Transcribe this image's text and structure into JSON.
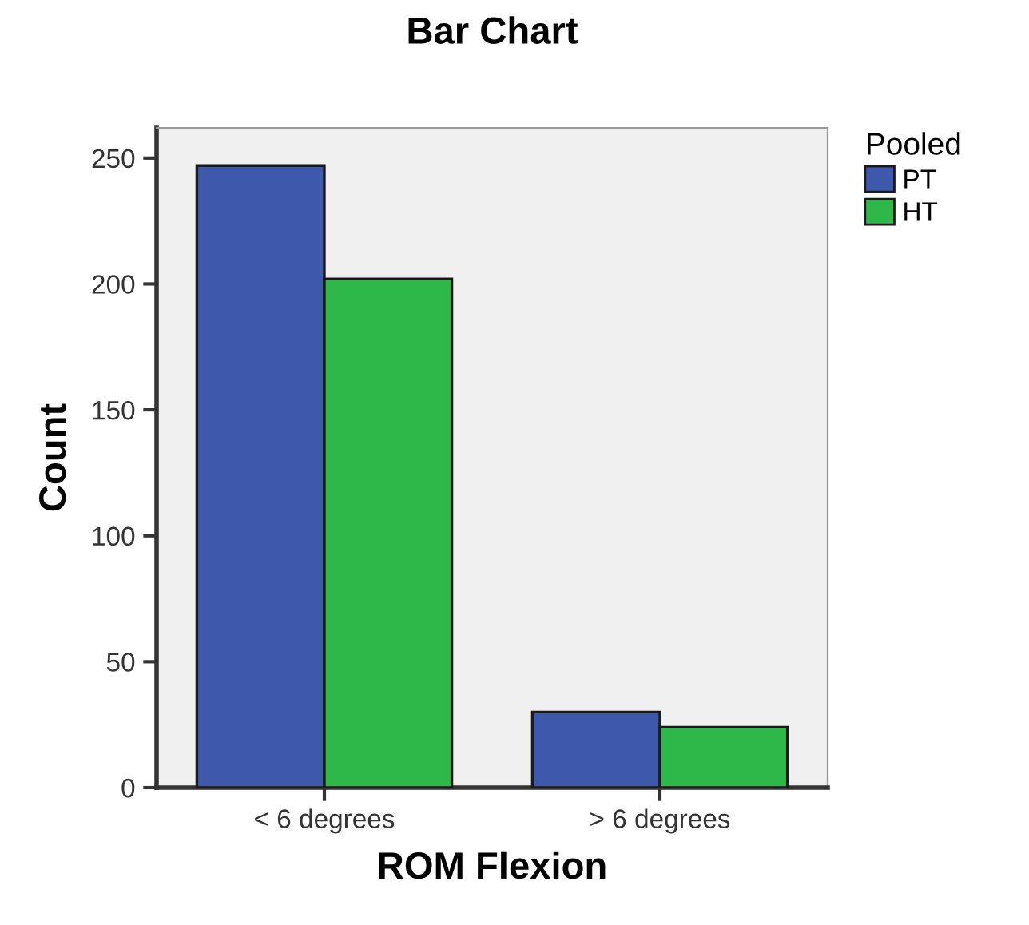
{
  "chart_data": {
    "type": "bar",
    "title": "Bar Chart",
    "xlabel": "ROM Flexion",
    "ylabel": "Count",
    "legend_title": "Pooled",
    "categories": [
      "< 6 degrees",
      "> 6 degrees"
    ],
    "series": [
      {
        "name": "PT",
        "color": "#3e58ac",
        "values": [
          247,
          30
        ]
      },
      {
        "name": "HT",
        "color": "#2fb84a",
        "values": [
          202,
          24
        ]
      }
    ],
    "ylim": [
      0,
      262
    ],
    "yticks": [
      0,
      50,
      100,
      150,
      200,
      250
    ],
    "grid": false,
    "legend": "top right"
  }
}
